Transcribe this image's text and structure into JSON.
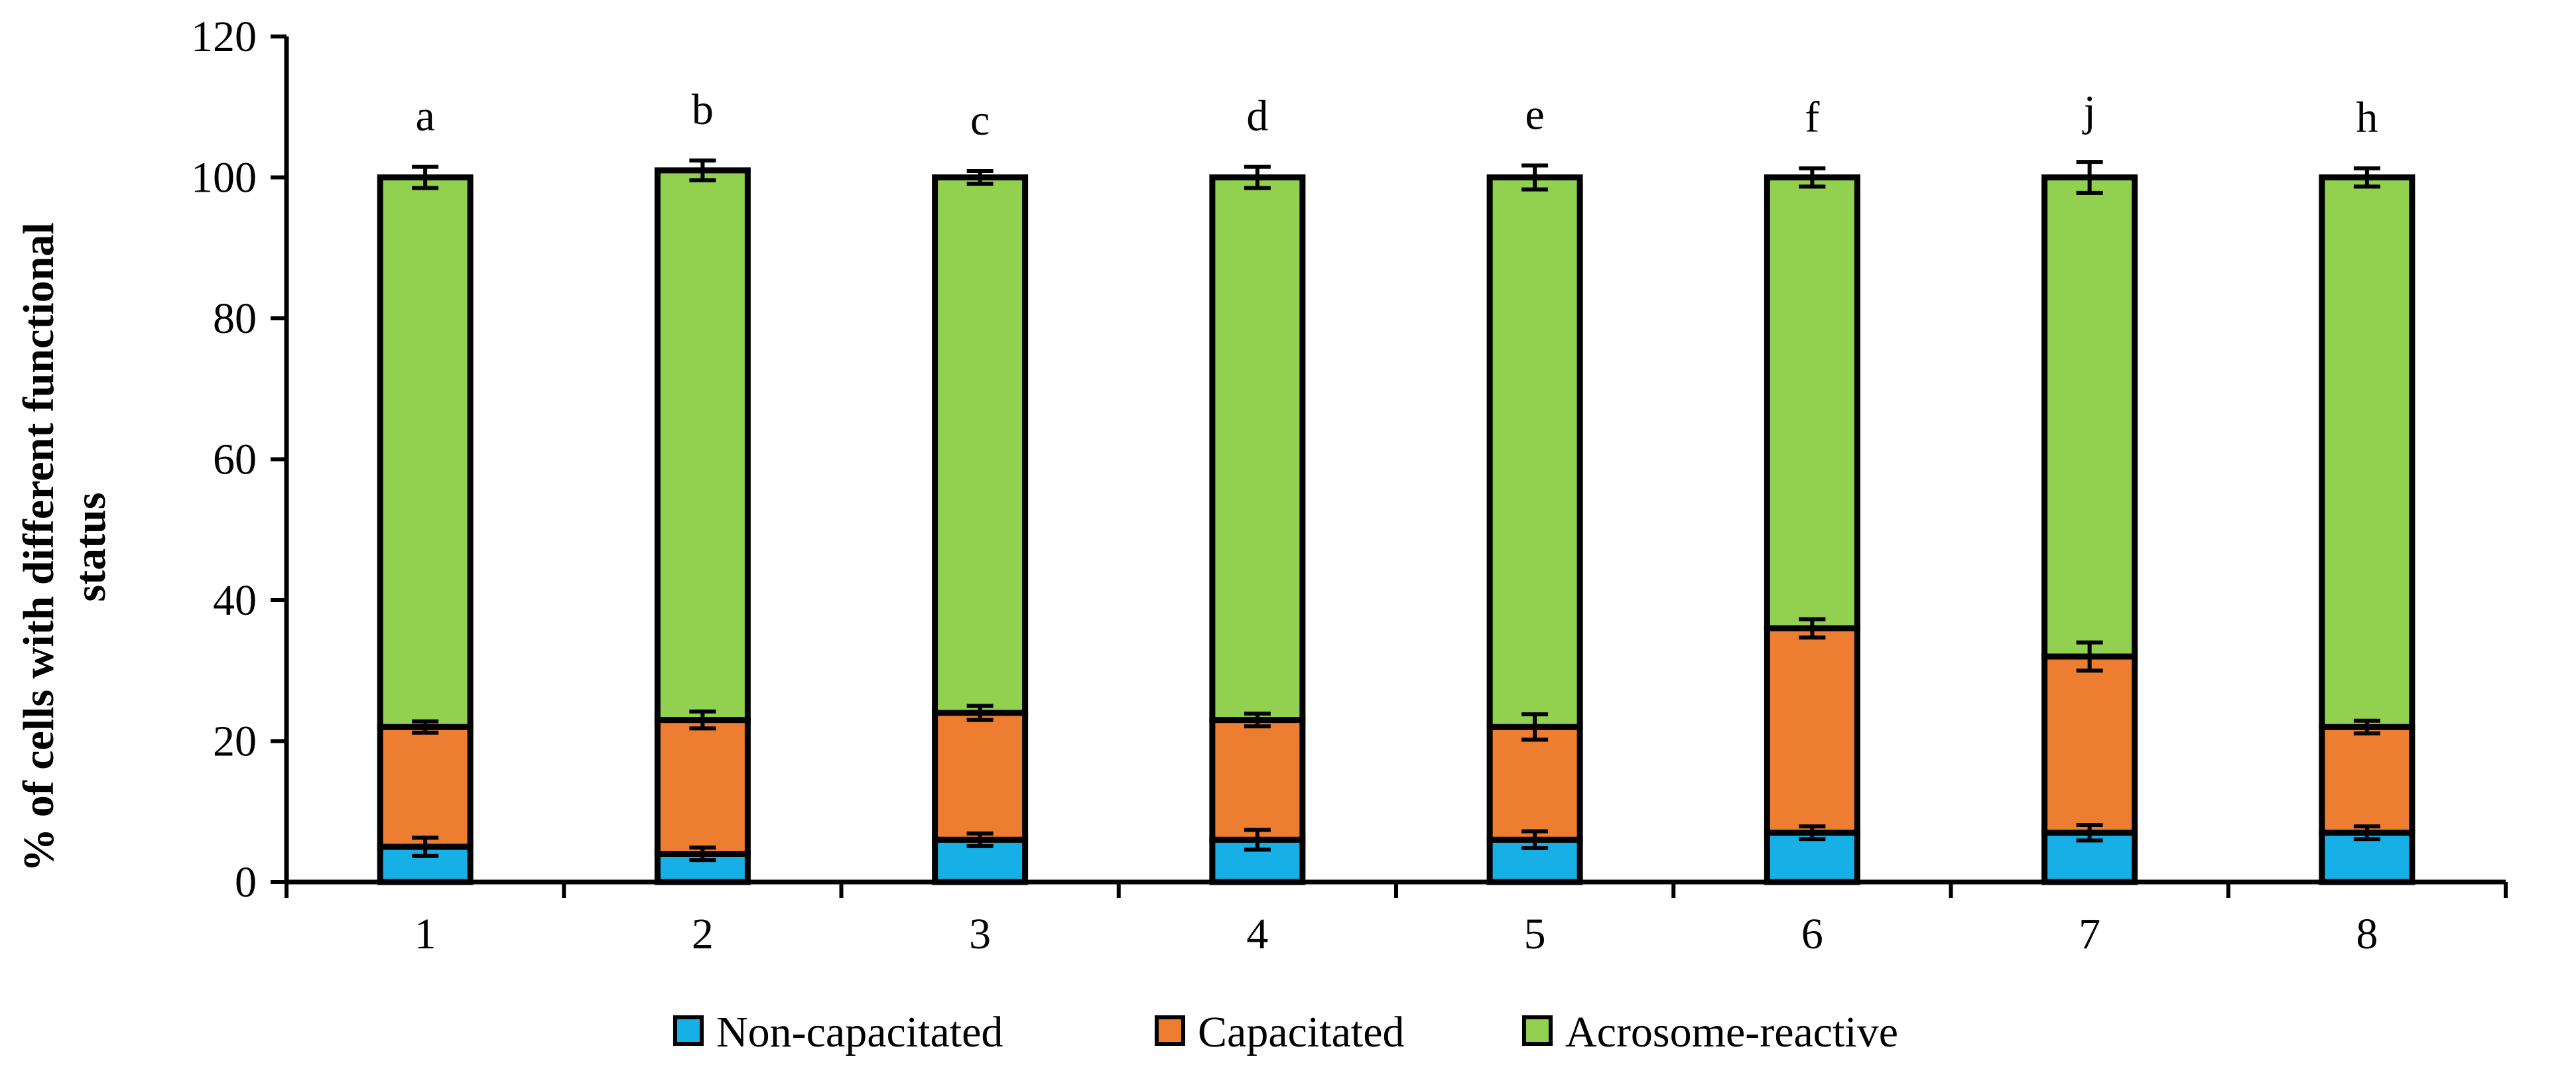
{
  "chart_data": {
    "type": "bar",
    "stacked": true,
    "title": "",
    "xlabel": "",
    "ylabel_lines": [
      "% of cells with different functional",
      "status"
    ],
    "ylim": [
      0,
      120
    ],
    "yticks": [
      0,
      20,
      40,
      60,
      80,
      100,
      120
    ],
    "categories": [
      "1",
      "2",
      "3",
      "4",
      "5",
      "6",
      "7",
      "8"
    ],
    "group_letters": [
      "a",
      "b",
      "c",
      "d",
      "e",
      "f",
      "j",
      "h"
    ],
    "series": [
      {
        "name": "Non-capacitated",
        "color": "#17b0e6",
        "values": [
          5,
          4,
          6,
          6,
          6,
          7,
          7,
          7
        ],
        "errors": [
          1.3,
          0.9,
          0.9,
          1.4,
          1.2,
          0.9,
          1.1,
          0.9
        ]
      },
      {
        "name": "Capacitated",
        "color": "#ed7d31",
        "values": [
          17,
          19,
          18,
          17,
          16,
          29,
          25,
          15
        ],
        "errors": [
          0.8,
          1.2,
          1.0,
          0.9,
          1.8,
          1.3,
          2.0,
          0.9
        ]
      },
      {
        "name": "Acrosome-reactive",
        "color": "#92d050",
        "values": [
          78,
          78,
          76,
          77,
          78,
          64,
          68,
          78
        ],
        "errors": [
          1.5,
          1.4,
          0.9,
          1.5,
          1.7,
          1.3,
          2.2,
          1.3
        ]
      }
    ],
    "legend_position": "bottom-center",
    "grid": false
  }
}
